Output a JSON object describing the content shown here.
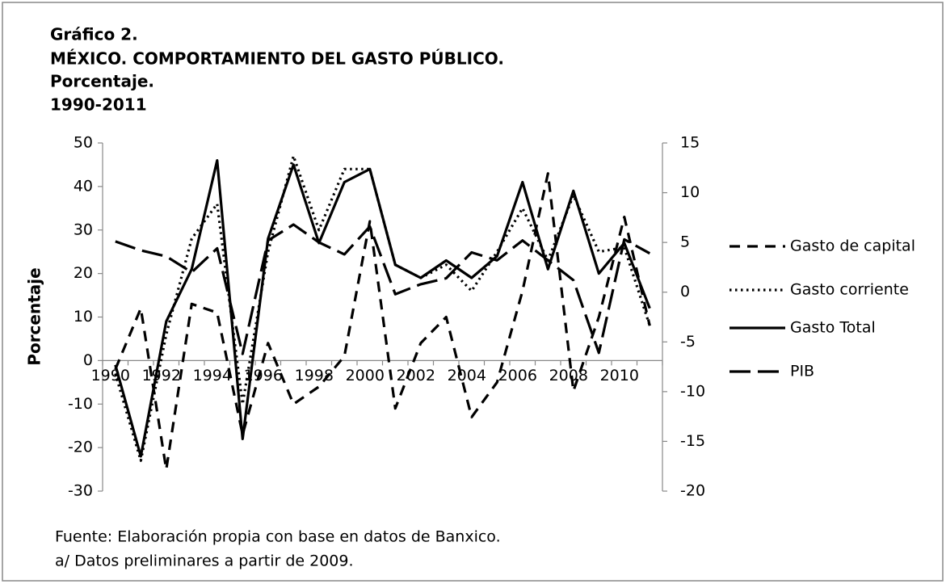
{
  "chart_data": {
    "type": "line",
    "title": [
      "Gráfico 2.",
      "MÉXICO. COMPORTAMIENTO DEL GASTO PÚBLICO.",
      "Porcentaje.",
      "1990-2011"
    ],
    "ylabel": "Porcentaje",
    "notes": [
      "Fuente: Elaboración propia con base en datos de Banxico.",
      "a/ Datos preliminares a partir de 2009."
    ],
    "categories": [
      "1990",
      null,
      "1992",
      null,
      "1994",
      null,
      "1996",
      null,
      "1998",
      null,
      "2000",
      null,
      "2002",
      null,
      "2004",
      null,
      "2006",
      null,
      "2008",
      null,
      "2010",
      null
    ],
    "ylim": [
      -30,
      50
    ],
    "yticks": [
      -30,
      -20,
      -10,
      0,
      10,
      20,
      30,
      40,
      50
    ],
    "y2lim": [
      -20,
      15
    ],
    "y2ticks": [
      -20,
      -15,
      -10,
      -5,
      0,
      5,
      10,
      15
    ],
    "legend": "right",
    "series": [
      {
        "name": "Gasto de capital",
        "color": "#000000",
        "line_style": "dashed",
        "values": [
          -2,
          12,
          -25,
          13,
          11,
          -17,
          4,
          -10,
          -6,
          1,
          32,
          -11,
          4,
          10,
          -13,
          -5,
          16,
          43,
          -7,
          10,
          33,
          8
        ]
      },
      {
        "name": "Gasto corriente",
        "color": "#000000",
        "line_style": "dotted",
        "values": [
          -3,
          -23,
          6,
          28,
          36,
          -10,
          25,
          47,
          30,
          44,
          44,
          22,
          19,
          22,
          16,
          25,
          35,
          23,
          38,
          25,
          26,
          8
        ]
      },
      {
        "name": "Gasto Total",
        "color": "#000000",
        "line_style": "solid",
        "values": [
          -1,
          -22,
          9,
          21,
          46,
          -18,
          28,
          45,
          27,
          41,
          44,
          22,
          19,
          23,
          19,
          24,
          41,
          21,
          39,
          20,
          27,
          12
        ]
      },
      {
        "name": "PIB",
        "color": "#000000",
        "line_style": "long-dash",
        "axis": "y2",
        "values": [
          5.1,
          4.2,
          3.6,
          2.0,
          4.4,
          -6.2,
          5.2,
          6.8,
          5.0,
          3.8,
          6.6,
          -0.2,
          0.8,
          1.4,
          4.0,
          3.2,
          5.2,
          3.2,
          1.2,
          -6.1,
          5.3,
          3.9
        ]
      }
    ]
  }
}
